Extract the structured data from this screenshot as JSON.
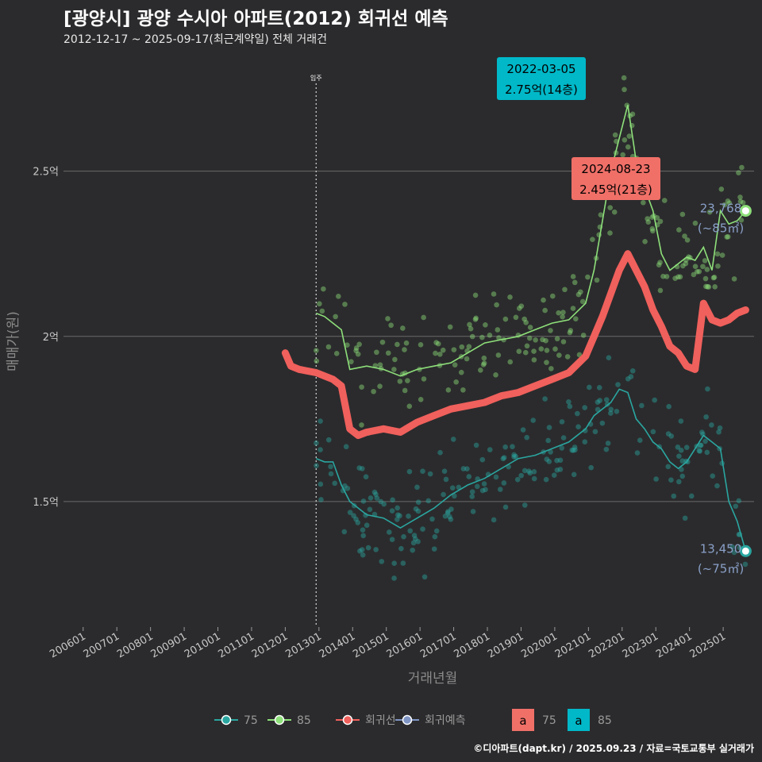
{
  "title": "[광양시] 광양 수시아 아파트(2012) 회귀선 예측",
  "subtitle": "2012-12-17 ~ 2025-09-17(최근계약일) 전체 거래건",
  "caption": "©디아파트(dapt.kr) / 2025.09.23 / 자료=국토교통부 실거래가",
  "colors": {
    "background": "#2b2b2d",
    "grid": "#6a6a6a",
    "s75": "#2aa6a0",
    "s85": "#8ee07a",
    "regression": "#f0605c",
    "forecast": "#7f95c4",
    "callout_red": "#f07068",
    "callout_teal": "#00b8c8"
  },
  "chart_data": {
    "type": "line",
    "xlabel": "거래년월",
    "ylabel": "매매가(원)",
    "x_ticks": [
      "200601",
      "200701",
      "200801",
      "200901",
      "201001",
      "201101",
      "201201",
      "201301",
      "201401",
      "201501",
      "201601",
      "201701",
      "201801",
      "201901",
      "202001",
      "202101",
      "202201",
      "202301",
      "202401",
      "202501"
    ],
    "y_ticks": [
      {
        "value": 1.5,
        "label": "1.5억"
      },
      {
        "value": 2.0,
        "label": "2억"
      },
      {
        "value": 2.5,
        "label": "2.5억"
      }
    ],
    "xlim": [
      "2005-06",
      "2025-12"
    ],
    "ylim": [
      1.12,
      2.85
    ],
    "grid": true,
    "annotation_line": {
      "x": "2012-12",
      "label": "입주"
    },
    "series": [
      {
        "name": "85",
        "x": [
          "2012-12",
          "2013-03",
          "2013-06",
          "2013-09",
          "2013-12",
          "2014-06",
          "2014-12",
          "2015-06",
          "2015-12",
          "2016-06",
          "2016-12",
          "2017-06",
          "2017-12",
          "2018-06",
          "2018-12",
          "2019-06",
          "2019-12",
          "2020-06",
          "2020-12",
          "2021-03",
          "2021-06",
          "2021-09",
          "2021-12",
          "2022-03",
          "2022-06",
          "2022-09",
          "2022-12",
          "2023-03",
          "2023-06",
          "2023-09",
          "2023-12",
          "2024-03",
          "2024-06",
          "2024-09",
          "2024-12",
          "2025-03",
          "2025-06",
          "2025-09"
        ],
        "values": [
          2.07,
          2.06,
          2.04,
          2.02,
          1.9,
          1.91,
          1.9,
          1.88,
          1.9,
          1.91,
          1.92,
          1.95,
          1.98,
          1.99,
          2.0,
          2.02,
          2.04,
          2.05,
          2.1,
          2.2,
          2.35,
          2.5,
          2.6,
          2.7,
          2.53,
          2.45,
          2.38,
          2.25,
          2.2,
          2.22,
          2.24,
          2.23,
          2.27,
          2.2,
          2.38,
          2.34,
          2.35,
          2.38
        ]
      },
      {
        "name": "75",
        "x": [
          "2012-12",
          "2013-03",
          "2013-06",
          "2013-09",
          "2013-12",
          "2014-06",
          "2014-12",
          "2015-06",
          "2015-12",
          "2016-06",
          "2016-12",
          "2017-06",
          "2017-12",
          "2018-06",
          "2018-12",
          "2019-06",
          "2019-12",
          "2020-06",
          "2020-12",
          "2021-03",
          "2021-06",
          "2021-09",
          "2021-12",
          "2022-03",
          "2022-06",
          "2022-09",
          "2022-12",
          "2023-03",
          "2023-06",
          "2023-09",
          "2023-12",
          "2024-03",
          "2024-06",
          "2024-09",
          "2024-12",
          "2025-03",
          "2025-06",
          "2025-09"
        ],
        "values": [
          1.63,
          1.62,
          1.62,
          1.55,
          1.5,
          1.46,
          1.45,
          1.42,
          1.45,
          1.48,
          1.52,
          1.55,
          1.57,
          1.6,
          1.63,
          1.64,
          1.66,
          1.68,
          1.72,
          1.76,
          1.78,
          1.8,
          1.84,
          1.83,
          1.75,
          1.72,
          1.68,
          1.66,
          1.62,
          1.6,
          1.62,
          1.66,
          1.7,
          1.68,
          1.66,
          1.5,
          1.44,
          1.35
        ]
      },
      {
        "name": "회귀선",
        "x": [
          "2012-01",
          "2012-03",
          "2012-06",
          "2012-12",
          "2013-06",
          "2013-09",
          "2013-12",
          "2014-03",
          "2014-06",
          "2014-12",
          "2015-06",
          "2015-12",
          "2016-06",
          "2016-12",
          "2017-06",
          "2017-12",
          "2018-06",
          "2018-12",
          "2019-06",
          "2019-12",
          "2020-06",
          "2020-12",
          "2021-03",
          "2021-06",
          "2021-09",
          "2021-12",
          "2022-03",
          "2022-06",
          "2022-09",
          "2022-12",
          "2023-03",
          "2023-06",
          "2023-09",
          "2023-12",
          "2024-03",
          "2024-06",
          "2024-09",
          "2024-12",
          "2025-03",
          "2025-06",
          "2025-09"
        ],
        "values": [
          1.95,
          1.91,
          1.9,
          1.89,
          1.87,
          1.85,
          1.72,
          1.7,
          1.71,
          1.72,
          1.71,
          1.74,
          1.76,
          1.78,
          1.79,
          1.8,
          1.82,
          1.83,
          1.85,
          1.87,
          1.89,
          1.94,
          2.0,
          2.06,
          2.13,
          2.2,
          2.25,
          2.2,
          2.15,
          2.08,
          2.03,
          1.97,
          1.95,
          1.91,
          1.9,
          2.1,
          2.05,
          2.04,
          2.05,
          2.07,
          2.08
        ]
      }
    ],
    "end_labels": [
      {
        "series": "85",
        "line1": "23,768",
        "line2": "(~85㎡)"
      },
      {
        "series": "75",
        "line1": "13,450",
        "line2": "(~75㎡)"
      }
    ],
    "callouts": [
      {
        "date": "2022-03-05",
        "price": "2.75억(14층)",
        "series": "85",
        "style": "teal"
      },
      {
        "date": "2024-08-23",
        "price": "2.45억(21층)",
        "series": "75",
        "style": "red"
      }
    ],
    "legend": {
      "position": "bottom",
      "line_items": [
        "75",
        "85",
        "회귀선",
        "회귀예측"
      ],
      "box_items": [
        {
          "key": "a",
          "label": "75"
        },
        {
          "key": "a",
          "label": "85"
        }
      ]
    }
  }
}
